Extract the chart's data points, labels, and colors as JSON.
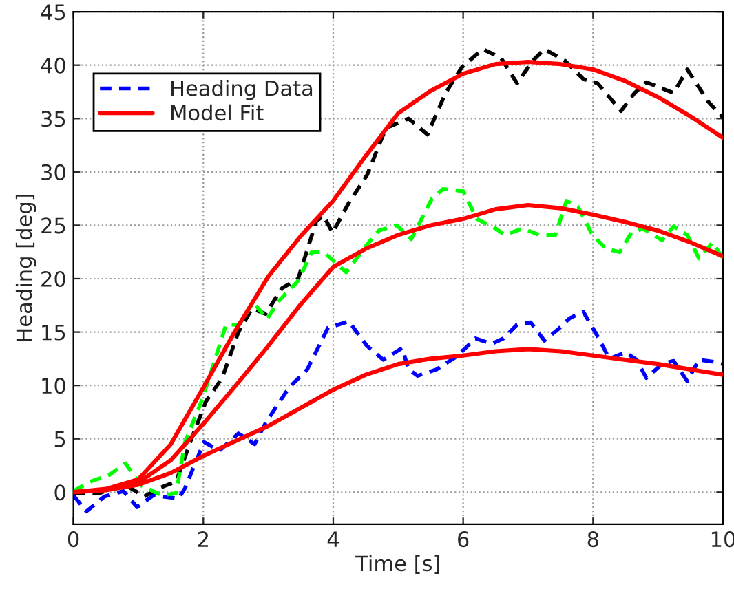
{
  "chart_data": {
    "type": "line",
    "xlabel": "Time [s]",
    "ylabel": "Heading [deg]",
    "xlim": [
      0,
      10
    ],
    "ylim": [
      -3,
      45
    ],
    "xticks": [
      0,
      2,
      4,
      6,
      8,
      10
    ],
    "yticks": [
      0,
      5,
      10,
      15,
      20,
      25,
      30,
      35,
      40,
      45
    ],
    "grid": true,
    "legend": "top left",
    "series": [
      {
        "name": "Heading Data",
        "color": "#0000ff",
        "line_style": "dashed",
        "x": [
          0,
          0.2,
          0.48,
          0.77,
          0.98,
          1.23,
          1.62,
          1.72,
          2.01,
          2.25,
          2.54,
          2.79,
          2.96,
          3.32,
          3.6,
          3.92,
          4.24,
          4.52,
          4.77,
          5.06,
          5.16,
          5.3,
          5.59,
          5.87,
          6.0,
          6.19,
          6.44,
          6.62,
          6.83,
          7.04,
          7.25,
          7.47,
          7.64,
          7.85,
          8.07,
          8.25,
          8.5,
          8.67,
          8.82,
          9.06,
          9.24,
          9.45,
          9.63,
          9.87,
          10
        ],
        "values": [
          -0.3,
          -1.8,
          -0.4,
          0.1,
          -1.4,
          -0.3,
          -0.6,
          0.4,
          4.7,
          3.9,
          5.5,
          4.5,
          6.5,
          9.8,
          11.5,
          15.4,
          16,
          13.7,
          12.4,
          13.5,
          11.5,
          10.9,
          11.5,
          12.6,
          13.3,
          14.4,
          13.9,
          14.4,
          15.7,
          15.9,
          14.2,
          15.3,
          16.3,
          16.9,
          14.6,
          12.5,
          13.1,
          12.4,
          10.7,
          12,
          12.3,
          10.4,
          12.4,
          12.2,
          12
        ]
      },
      {
        "color": "#000000",
        "line_style": "dashed",
        "x": [
          0,
          0.4,
          0.77,
          1.09,
          1.33,
          1.58,
          1.8,
          2.04,
          2.29,
          2.54,
          2.75,
          2.96,
          3.21,
          3.46,
          3.74,
          3.85,
          3.99,
          4.24,
          4.52,
          4.81,
          5.16,
          5.45,
          5.73,
          5.98,
          6.3,
          6.58,
          6.83,
          7.07,
          7.25,
          7.57,
          7.85,
          8.07,
          8.43,
          8.64,
          8.82,
          9.24,
          9.45,
          9.77,
          10
        ],
        "values": [
          -0.1,
          -0.1,
          0.8,
          -0.4,
          0.4,
          1.0,
          4.7,
          8.5,
          10.7,
          15,
          17.2,
          16.7,
          19.1,
          20,
          25.4,
          25.9,
          24.3,
          27.1,
          29.7,
          34.1,
          35,
          33.5,
          37.4,
          39.8,
          41.5,
          40.7,
          38.3,
          40.4,
          41.5,
          40.4,
          38.7,
          38.3,
          35.7,
          37.4,
          38.4,
          37.4,
          39.6,
          36.6,
          35.1
        ]
      },
      {
        "color": "#00ff00",
        "line_style": "dashed",
        "x": [
          0,
          0.26,
          0.55,
          0.8,
          1.05,
          1.37,
          1.58,
          1.72,
          1.97,
          2.18,
          2.35,
          2.55,
          2.77,
          2.98,
          3.16,
          3.46,
          3.67,
          3.85,
          4.2,
          4.52,
          4.7,
          4.98,
          5.2,
          5.52,
          5.69,
          6.0,
          6.21,
          6.5,
          6.64,
          6.92,
          7.17,
          7.42,
          7.59,
          7.77,
          7.99,
          8.2,
          8.41,
          8.59,
          8.77,
          9.06,
          9.24,
          9.45,
          9.63,
          9.84,
          10
        ],
        "values": [
          0.1,
          1.0,
          1.6,
          2.7,
          0.6,
          -0.3,
          -0.1,
          4.7,
          8.5,
          12.4,
          15.7,
          15.7,
          17.8,
          16.2,
          17.9,
          19.8,
          22.5,
          22.5,
          20.6,
          23.2,
          24.5,
          25,
          23.7,
          27.5,
          28.4,
          28.2,
          25.6,
          24.7,
          24.1,
          24.7,
          24.1,
          24.1,
          27.3,
          26.7,
          24.1,
          22.8,
          22.5,
          24.3,
          24.7,
          23.6,
          24.9,
          24.1,
          21.9,
          23.4,
          21.9
        ]
      },
      {
        "name": "Model Fit",
        "color": "#ff0000",
        "line_style": "solid",
        "x": [
          0,
          0.5,
          1,
          1.5,
          2,
          2.5,
          3,
          3.5,
          4,
          4.5,
          5,
          5.5,
          6,
          6.5,
          7,
          7.5,
          8,
          8.5,
          9,
          9.5,
          10
        ],
        "values": [
          0,
          0.3,
          1.2,
          4.5,
          9.8,
          15.2,
          20.2,
          24,
          27.3,
          31.5,
          35.5,
          37.6,
          39.2,
          40.1,
          40.3,
          40.1,
          39.6,
          38.5,
          37,
          35.2,
          33.2
        ]
      },
      {
        "color": "#ff0000",
        "line_style": "solid",
        "x": [
          0,
          0.5,
          1,
          1.5,
          2,
          2.5,
          3,
          3.5,
          4,
          4.5,
          5,
          5.5,
          6,
          6.5,
          7,
          7.5,
          8,
          8.5,
          9,
          9.5,
          10
        ],
        "values": [
          0,
          0.2,
          0.9,
          3,
          6.4,
          10,
          13.7,
          17.6,
          21.1,
          22.8,
          24.1,
          25,
          25.6,
          26.5,
          26.9,
          26.6,
          26,
          25.3,
          24.5,
          23.4,
          22.1
        ]
      },
      {
        "color": "#ff0000",
        "line_style": "solid",
        "x": [
          0,
          0.5,
          1,
          1.5,
          2,
          2.5,
          3,
          3.5,
          4,
          4.5,
          5,
          5.5,
          6,
          6.5,
          7,
          7.5,
          8,
          8.5,
          9,
          9.5,
          10
        ],
        "values": [
          0,
          0.2,
          0.7,
          1.8,
          3.4,
          4.8,
          6.2,
          7.9,
          9.6,
          11,
          12,
          12.5,
          12.8,
          13.2,
          13.4,
          13.2,
          12.8,
          12.4,
          12,
          11.5,
          11
        ]
      }
    ]
  }
}
